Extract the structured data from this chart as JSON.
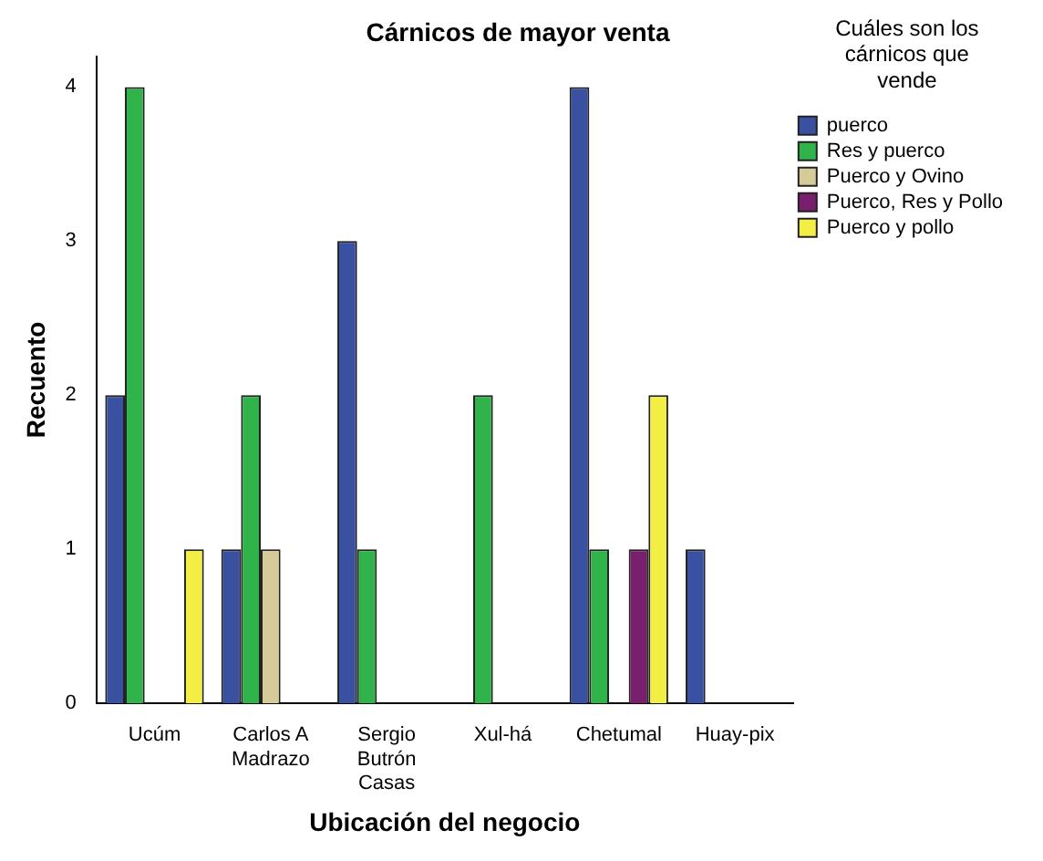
{
  "chart_data": {
    "type": "bar",
    "title": "Cárnicos de mayor venta",
    "xlabel": "Ubicación del negocio",
    "ylabel": "Recuento",
    "legend_title": "Cuáles son los cárnicos que vende",
    "categories": [
      "Ucúm",
      "Carlos A Madrazo",
      "Sergio Butrón Casas",
      "Xul-há",
      "Chetumal",
      "Huay-pix"
    ],
    "series": [
      {
        "name": "puerco",
        "color": "#3a50a0",
        "values": [
          2,
          1,
          3,
          null,
          4,
          1
        ]
      },
      {
        "name": "Res y puerco",
        "color": "#2fb34a",
        "values": [
          4,
          2,
          1,
          2,
          1,
          null
        ]
      },
      {
        "name": "Puerco y Ovino",
        "color": "#d6cb98",
        "values": [
          null,
          1,
          null,
          null,
          null,
          null
        ]
      },
      {
        "name": "Puerco, Res y Pollo",
        "color": "#7a1f6e",
        "values": [
          null,
          null,
          null,
          null,
          1,
          null
        ]
      },
      {
        "name": "Puerco y pollo",
        "color": "#f2ee44",
        "values": [
          1,
          null,
          null,
          null,
          2,
          null
        ]
      }
    ],
    "ylim": [
      0,
      4.2
    ],
    "yticks": [
      0,
      1,
      2,
      3,
      4
    ],
    "grid": false,
    "legend": "right"
  }
}
